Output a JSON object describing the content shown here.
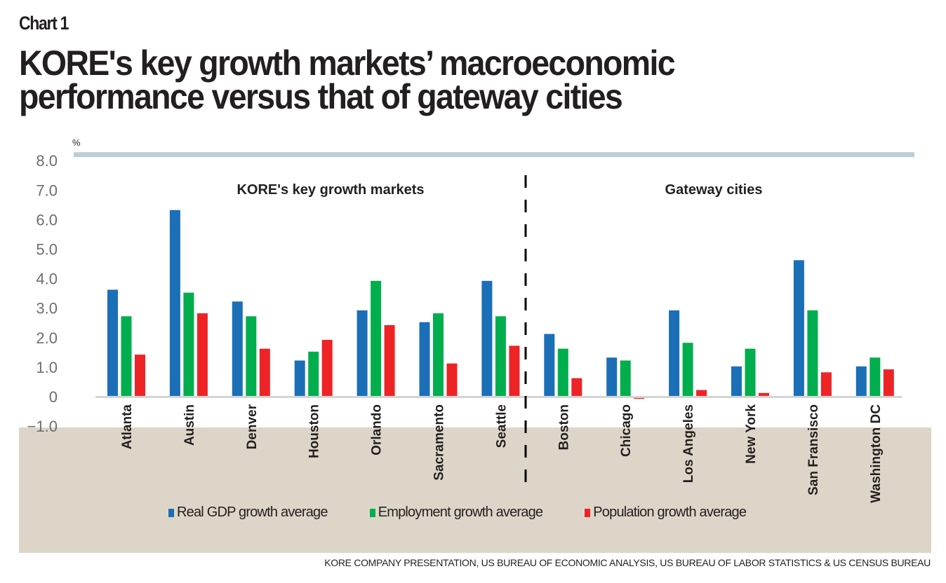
{
  "header": {
    "chart_label": "Chart 1",
    "title_line1": "KORE's key growth markets’ macroeconomic",
    "title_line2": "performance versus that of gateway cities"
  },
  "colors": {
    "gdp": "#1b6fb7",
    "employment": "#00ae4d",
    "population": "#ee2326",
    "top_rule": "#bccdd4",
    "axis": "#d4d4d4",
    "beige_panel": "#ddd6c8",
    "tick_text": "#6d6e71"
  },
  "chart_data": {
    "type": "bar",
    "title": "KORE's key growth markets’ macroeconomic performance versus that of gateway cities",
    "ylabel": "%",
    "xlabel": "",
    "ylim": [
      -1.0,
      8.0
    ],
    "yticks": [
      8.0,
      7.0,
      6.0,
      5.0,
      4.0,
      3.0,
      2.0,
      1.0,
      0,
      -1.0
    ],
    "ytick_labels": [
      "8.0",
      "7.0",
      "6.0",
      "5.0",
      "4.0",
      "3.0",
      "2.0",
      "1.0",
      "0",
      "−1.0"
    ],
    "grid": false,
    "legend_position": "bottom",
    "categories": [
      "Atlanta",
      "Austin",
      "Denver",
      "Houston",
      "Orlando",
      "Sacramento",
      "Seattle",
      "Boston",
      "Chicago",
      "Los Angeles",
      "New York",
      "San Fransisco",
      "Washington DC"
    ],
    "series": [
      {
        "name": "Real GDP growth average",
        "color_key": "gdp",
        "values": [
          3.6,
          6.3,
          3.2,
          1.2,
          2.9,
          2.5,
          3.9,
          2.1,
          1.3,
          2.9,
          1.0,
          4.6,
          1.0
        ]
      },
      {
        "name": "Employment growth average",
        "color_key": "employment",
        "values": [
          2.7,
          3.5,
          2.7,
          1.5,
          3.9,
          2.8,
          2.7,
          1.6,
          1.2,
          1.8,
          1.6,
          2.9,
          1.3
        ]
      },
      {
        "name": "Population growth average",
        "color_key": "population",
        "values": [
          1.4,
          2.8,
          1.6,
          1.9,
          2.4,
          1.1,
          1.7,
          0.6,
          -0.1,
          0.2,
          0.1,
          0.8,
          0.9
        ]
      }
    ],
    "groups": [
      {
        "label": "KORE's key growth markets",
        "categories": [
          "Atlanta",
          "Austin",
          "Denver",
          "Houston",
          "Orlando",
          "Sacramento",
          "Seattle"
        ]
      },
      {
        "label": "Gateway cities",
        "categories": [
          "Boston",
          "Chicago",
          "Los Angeles",
          "New York",
          "San Fransisco",
          "Washington DC"
        ]
      }
    ],
    "annotations": [
      "KORE's key growth markets",
      "Gateway cities"
    ],
    "divider": "dashed vertical line between Seattle and Boston"
  },
  "source": "KORE COMPANY PRESENTATION, US BUREAU OF ECONOMIC ANALYSIS, US BUREAU OF LABOR STATISTICS & US CENSUS BUREAU"
}
